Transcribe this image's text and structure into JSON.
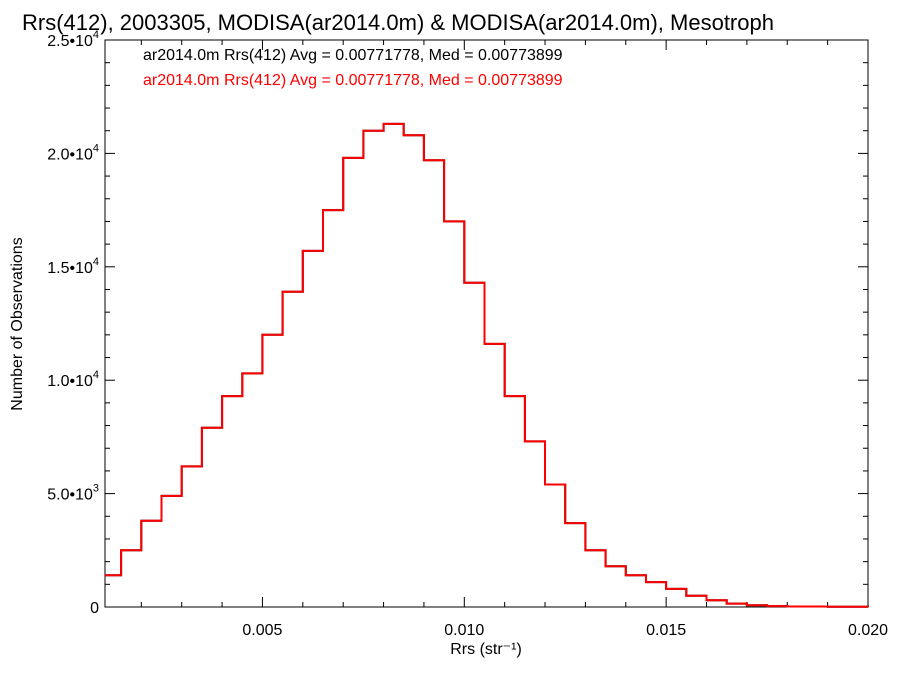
{
  "chart_data": {
    "type": "line",
    "title": "Rrs(412), 2003305, MODISA(ar2014.0m) & MODISA(ar2014.0m), Mesotroph",
    "xlabel": "Rrs (str⁻¹)",
    "ylabel": "Number of Observations",
    "xlim": [
      0.0011,
      0.02
    ],
    "ylim": [
      0,
      25000
    ],
    "xticks": [
      {
        "value": 0.005,
        "label": "0.005"
      },
      {
        "value": 0.01,
        "label": "0.010"
      },
      {
        "value": 0.015,
        "label": "0.015"
      },
      {
        "value": 0.02,
        "label": "0.020"
      }
    ],
    "yticks": [
      {
        "value": 0,
        "mant": "0",
        "exp": ""
      },
      {
        "value": 5000,
        "mant": "5.0•10",
        "exp": "3"
      },
      {
        "value": 10000,
        "mant": "1.0•10",
        "exp": "4"
      },
      {
        "value": 15000,
        "mant": "1.5•10",
        "exp": "4"
      },
      {
        "value": 20000,
        "mant": "2.0•10",
        "exp": "4"
      },
      {
        "value": 25000,
        "mant": "2.5•10",
        "exp": "4"
      }
    ],
    "grid": false,
    "legend_position": "top-left",
    "series": [
      {
        "name": "ar2014.0m Rrs(412) Avg = 0.00771778, Med = 0.00773899",
        "color": "#000000",
        "x": [
          0.0011,
          0.0015,
          0.002,
          0.0025,
          0.003,
          0.0035,
          0.004,
          0.0045,
          0.005,
          0.0055,
          0.006,
          0.0065,
          0.007,
          0.0075,
          0.008,
          0.0085,
          0.009,
          0.0095,
          0.01,
          0.0105,
          0.011,
          0.0115,
          0.012,
          0.0125,
          0.013,
          0.0135,
          0.014,
          0.0145,
          0.015,
          0.0155,
          0.016,
          0.0165,
          0.017,
          0.0175,
          0.018,
          0.019,
          0.02
        ],
        "y": [
          1400,
          2500,
          3800,
          4900,
          6200,
          7900,
          9300,
          10300,
          12000,
          13900,
          15700,
          17500,
          19800,
          21000,
          21300,
          20800,
          19700,
          17000,
          14300,
          11600,
          9300,
          7300,
          5400,
          3700,
          2500,
          1800,
          1400,
          1100,
          800,
          500,
          300,
          150,
          80,
          40,
          20,
          10,
          0
        ]
      },
      {
        "name": "ar2014.0m Rrs(412) Avg = 0.00771778, Med = 0.00773899",
        "color": "#ff0000",
        "x": [
          0.0011,
          0.0015,
          0.002,
          0.0025,
          0.003,
          0.0035,
          0.004,
          0.0045,
          0.005,
          0.0055,
          0.006,
          0.0065,
          0.007,
          0.0075,
          0.008,
          0.0085,
          0.009,
          0.0095,
          0.01,
          0.0105,
          0.011,
          0.0115,
          0.012,
          0.0125,
          0.013,
          0.0135,
          0.014,
          0.0145,
          0.015,
          0.0155,
          0.016,
          0.0165,
          0.017,
          0.0175,
          0.018,
          0.019,
          0.02
        ],
        "y": [
          1400,
          2500,
          3800,
          4900,
          6200,
          7900,
          9300,
          10300,
          12000,
          13900,
          15700,
          17500,
          19800,
          21000,
          21300,
          20800,
          19700,
          17000,
          14300,
          11600,
          9300,
          7300,
          5400,
          3700,
          2500,
          1800,
          1400,
          1100,
          800,
          500,
          300,
          150,
          80,
          40,
          20,
          10,
          0
        ]
      }
    ]
  }
}
